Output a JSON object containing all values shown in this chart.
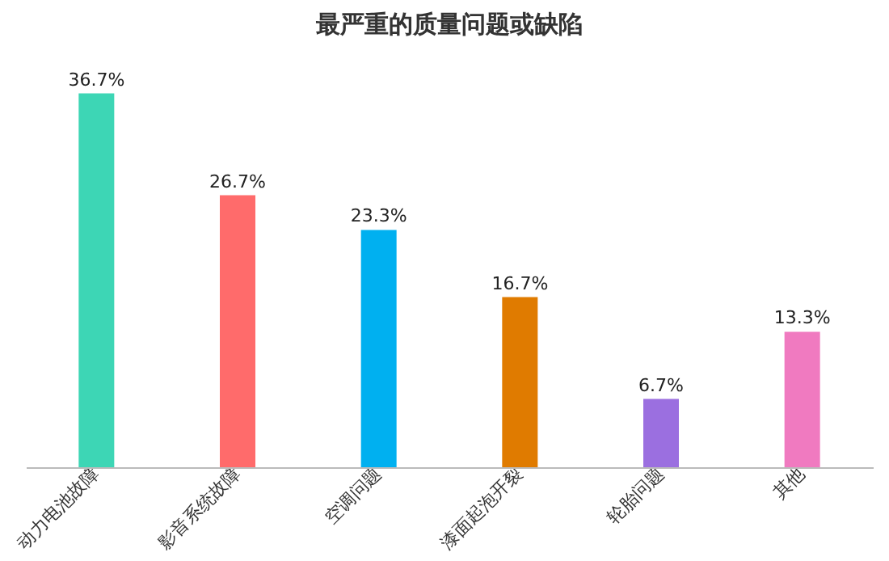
{
  "chart_data": {
    "type": "bar",
    "title": "最严重的质量问题或缺陷",
    "categories": [
      "动力电池故障",
      "影音系统故障",
      "空调问题",
      "漆面起泡开裂",
      "轮胎问题",
      "其他"
    ],
    "values": [
      36.7,
      26.7,
      23.3,
      16.7,
      6.7,
      13.3
    ],
    "colors": [
      "#3dd6b5",
      "#ff6b6b",
      "#00b0f0",
      "#e07b00",
      "#9b6fe0",
      "#f07ac0"
    ],
    "value_labels": [
      "36.7%",
      "26.7%",
      "23.3%",
      "16.7%",
      "6.7%",
      "13.3%"
    ]
  }
}
